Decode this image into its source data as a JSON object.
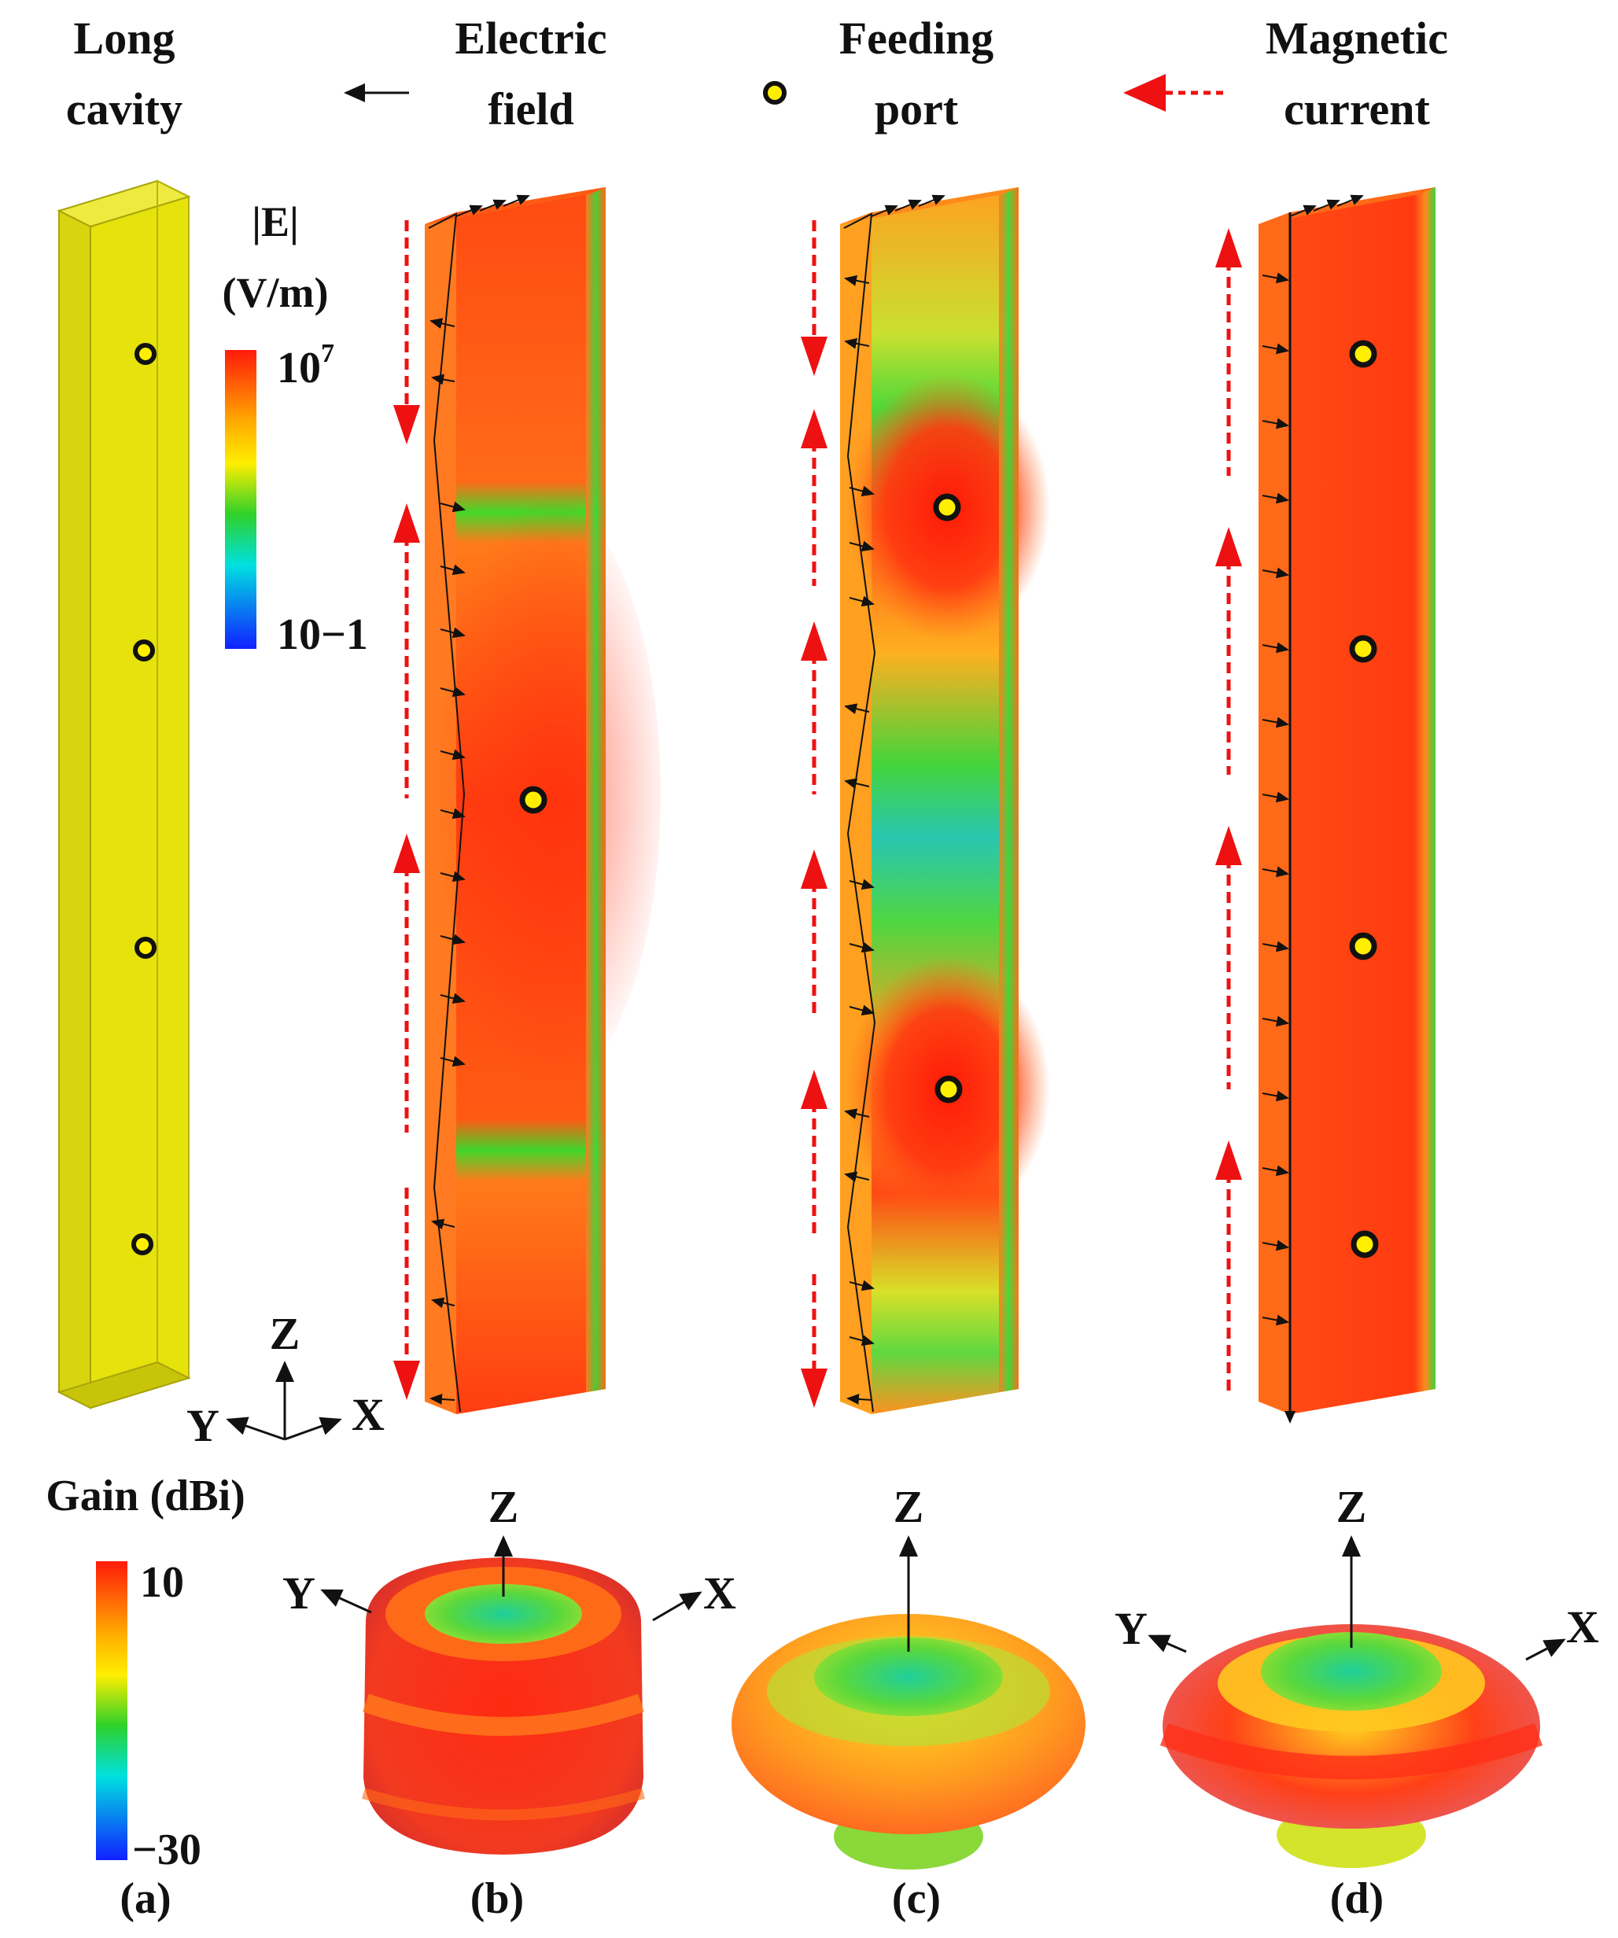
{
  "legend": {
    "long_cavity": [
      "Long",
      "cavity"
    ],
    "electric_field": [
      "Electric",
      "field"
    ],
    "feeding_port": [
      "Feeding",
      "port"
    ],
    "magnetic_current": [
      "Magnetic",
      "current"
    ]
  },
  "e_colorbar": {
    "title": "|E|",
    "unit": "(V/m)",
    "max_base": "10",
    "max_exp": "7",
    "min_label": "10−1"
  },
  "gain_colorbar": {
    "title": "Gain (dBi)",
    "max_label": "10",
    "min_label": "−30"
  },
  "axes": {
    "z": "Z",
    "y": "Y",
    "x": "X"
  },
  "panels": {
    "a": "(a)",
    "b": "(b)",
    "c": "(c)",
    "d": "(d)"
  },
  "colors": {
    "cavity": "#e6e20c",
    "field_red": "#ff3b10",
    "field_green": "#35d21c",
    "arrow_red": "#ee1111",
    "port_fill": "#ffee00"
  }
}
